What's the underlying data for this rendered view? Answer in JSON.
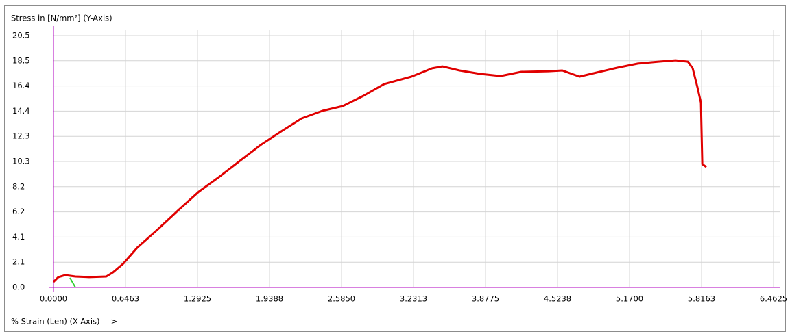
{
  "chart_data": {
    "type": "line",
    "title": "Stress in [N/mm²] (Y-Axis)",
    "x_label": "% Strain (Len) (X-Axis) --->",
    "xlim": [
      0,
      6.4625
    ],
    "ylim": [
      0,
      20.5
    ],
    "xticks": [
      {
        "value": 0,
        "label": "0.0000"
      },
      0.6463,
      1.2925,
      1.9388,
      {
        "value": 2.585,
        "label": "2.5850"
      },
      3.2313,
      3.8775,
      4.5238,
      {
        "value": 5.17,
        "label": "5.1700"
      },
      5.8163,
      6.4625
    ],
    "yticks": [
      {
        "value": 0,
        "label": "0.0"
      },
      {
        "value": 2.05,
        "label": "2.1"
      },
      4.1,
      {
        "value": 6.15,
        "label": "6.2"
      },
      8.2,
      {
        "value": 10.25,
        "label": "10.3"
      },
      12.3,
      {
        "value": 14.35,
        "label": "14.4"
      },
      16.4,
      {
        "value": 18.45,
        "label": "18.5"
      },
      20.5
    ],
    "grid": true,
    "series": [
      {
        "color": "#e00000",
        "x": [
          0,
          0.043,
          0.105,
          0.197,
          0.32,
          0.474,
          0.535,
          0.628,
          0.751,
          0.936,
          1.12,
          1.305,
          1.49,
          1.674,
          1.859,
          2.044,
          2.228,
          2.413,
          2.597,
          2.782,
          2.967,
          3.213,
          3.398,
          3.49,
          3.644,
          3.829,
          4.013,
          4.198,
          4.444,
          4.567,
          4.721,
          4.875,
          5.06,
          5.245,
          5.429,
          5.583,
          5.694,
          5.737,
          5.78,
          5.811,
          5.823,
          5.86
        ],
        "values": [
          0.45,
          0.84,
          1.0,
          0.89,
          0.84,
          0.89,
          1.23,
          1.95,
          3.23,
          4.73,
          6.29,
          7.8,
          9.02,
          10.31,
          11.59,
          12.7,
          13.76,
          14.37,
          14.76,
          15.6,
          16.55,
          17.16,
          17.83,
          17.99,
          17.66,
          17.38,
          17.21,
          17.55,
          17.6,
          17.66,
          17.16,
          17.49,
          17.88,
          18.22,
          18.38,
          18.49,
          18.38,
          17.83,
          16.27,
          15.04,
          10.03,
          9.8
        ]
      }
    ]
  }
}
